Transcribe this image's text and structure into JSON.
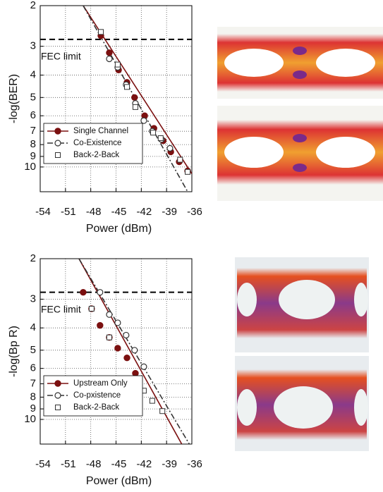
{
  "chart_data": [
    {
      "type": "scatter",
      "ylabel": "-log(BER)",
      "xlabel": "Power (dBm)",
      "xlim": [
        -54,
        -36
      ],
      "xticks": [
        -54,
        -51,
        -48,
        -45,
        -42,
        -39,
        -36
      ],
      "ylim": [
        2,
        12.8
      ],
      "yticks": [
        2,
        3,
        4,
        5,
        6,
        7,
        8,
        9,
        10
      ],
      "log_y": true,
      "y_inverted": true,
      "grid": true,
      "legend": "lower left",
      "hline": {
        "value": 2.8,
        "label": "FEC limit"
      },
      "series": [
        {
          "name": "Single Channel",
          "color": "#7b1010",
          "marker": "filled-circle",
          "line": "solid",
          "x": [
            -46.8,
            -45.8,
            -44.7,
            -43.7,
            -42.8,
            -41.6,
            -40.5,
            -39.4,
            -38.5,
            -37.5,
            -36.5
          ],
          "values": [
            2.7,
            3.2,
            3.8,
            4.3,
            5.0,
            6.0,
            6.8,
            7.7,
            8.6,
            9.5,
            10.4
          ],
          "fit": {
            "x": [
              -48.9,
              -36
            ],
            "values": [
              2,
              10.7
            ]
          }
        },
        {
          "name": "Co-Existence",
          "color": "#333333",
          "marker": "open-circle",
          "line": "dashdot",
          "x": [
            -45.8,
            -44.8,
            -43.8,
            -42.7,
            -41.7,
            -40.7,
            -39.6,
            -38.6
          ],
          "values": [
            3.4,
            3.7,
            4.4,
            5.3,
            6.3,
            7.0,
            7.6,
            8.3
          ],
          "fit": {
            "x": [
              -48.9,
              -36.5
            ],
            "values": [
              2,
              12.8
            ]
          }
        },
        {
          "name": "Back-2-Back",
          "color": "#333333",
          "marker": "square",
          "line": "none",
          "x": [
            -46.8,
            -44.8,
            -43.7,
            -42.7,
            -40.6,
            -39.7,
            -37.4,
            -36.5
          ],
          "values": [
            2.6,
            3.6,
            4.5,
            5.5,
            7.1,
            7.5,
            9.3,
            10.5
          ]
        }
      ]
    },
    {
      "type": "scatter",
      "ylabel": "-log(Bp R)",
      "xlabel": "Power (dBm)",
      "xlim": [
        -54,
        -36
      ],
      "xticks": [
        -54,
        -51,
        -48,
        -45,
        -42,
        -39,
        -36
      ],
      "ylim": [
        2,
        12.8
      ],
      "yticks": [
        2,
        3,
        4,
        5,
        6,
        7,
        8,
        9,
        10
      ],
      "log_y": true,
      "y_inverted": true,
      "grid": true,
      "legend": "lower left",
      "hline": {
        "value": 2.8,
        "label": "FEC limit"
      },
      "series": [
        {
          "name": "Upstream Only",
          "color": "#7b1010",
          "marker": "filled-circle",
          "line": "solid",
          "x": [
            -48.9,
            -47.9,
            -46.9,
            -45.8,
            -44.8,
            -43.7,
            -42.7
          ],
          "values": [
            2.8,
            3.3,
            3.9,
            4.4,
            4.9,
            5.4,
            6.3
          ],
          "fit": {
            "x": [
              -49.4,
              -37.2
            ],
            "values": [
              2,
              12.8
            ]
          }
        },
        {
          "name": "Co-pxistence",
          "color": "#333333",
          "marker": "open-circle",
          "line": "dashdot",
          "x": [
            -46.9,
            -45.8,
            -44.8,
            -43.8,
            -42.8,
            -41.7
          ],
          "values": [
            2.8,
            3.5,
            3.8,
            4.3,
            5.0,
            5.9
          ],
          "fit": {
            "x": [
              -49.4,
              -36.3
            ],
            "values": [
              2,
              12.8
            ]
          }
        },
        {
          "name": "Back-2-Back",
          "color": "#333333",
          "marker": "square",
          "line": "none",
          "x": [
            -47.9,
            -45.8,
            -41.7,
            -40.7,
            -39.5
          ],
          "values": [
            3.3,
            4.4,
            7.5,
            8.3,
            9.2
          ]
        }
      ]
    }
  ]
}
